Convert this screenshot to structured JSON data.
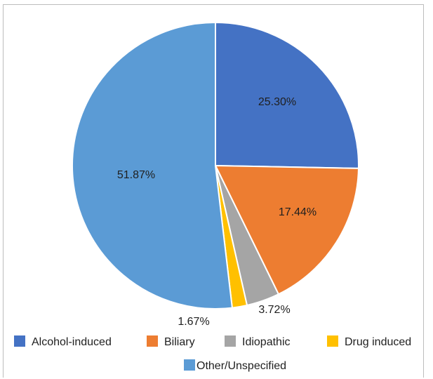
{
  "chart_data": {
    "type": "pie",
    "slices": [
      {
        "label": "Alcohol-induced",
        "value": 25.3,
        "display": "25.30%",
        "color": "#4472c4"
      },
      {
        "label": "Biliary",
        "value": 17.44,
        "display": "17.44%",
        "color": "#ed7d31"
      },
      {
        "label": "Idiopathic",
        "value": 3.72,
        "display": "3.72%",
        "color": "#a5a5a5"
      },
      {
        "label": "Drug induced",
        "value": 1.67,
        "display": "1.67%",
        "color": "#ffc000"
      },
      {
        "label": "Other/Unspecified",
        "value": 51.87,
        "display": "51.87%",
        "color": "#5b9bd5"
      }
    ],
    "start_angle_deg": 0,
    "direction": "clockwise",
    "legend_position": "bottom"
  }
}
